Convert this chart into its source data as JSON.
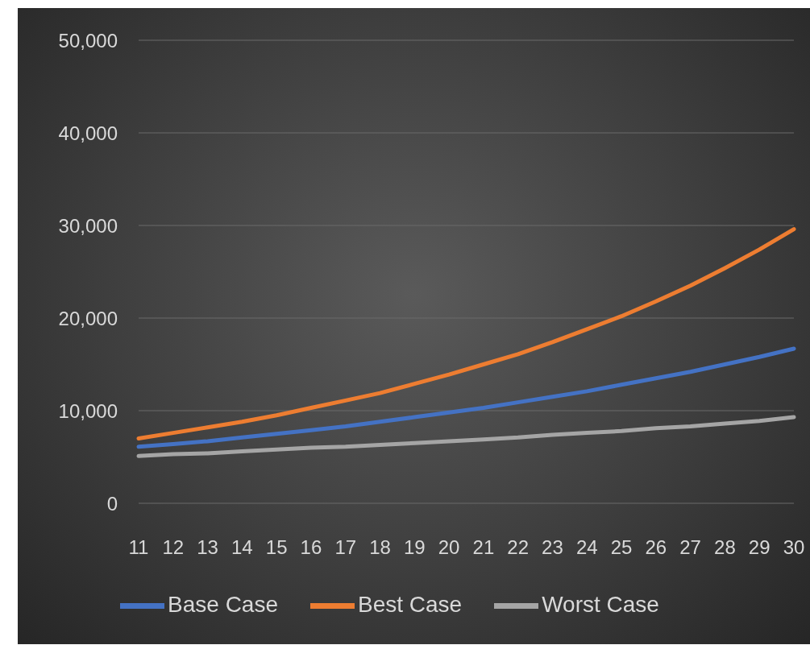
{
  "chart_data": {
    "type": "line",
    "categories": [
      "11",
      "12",
      "13",
      "14",
      "15",
      "16",
      "17",
      "18",
      "19",
      "20",
      "21",
      "22",
      "23",
      "24",
      "25",
      "26",
      "27",
      "28",
      "29",
      "30"
    ],
    "series": [
      {
        "name": "Base Case",
        "color": "#4472c4",
        "values": [
          6100,
          6400,
          6700,
          7100,
          7500,
          7900,
          8300,
          8800,
          9300,
          9800,
          10300,
          10900,
          11500,
          12100,
          12800,
          13500,
          14200,
          15000,
          15800,
          16700
        ]
      },
      {
        "name": "Best Case",
        "color": "#ed7d31",
        "values": [
          7000,
          7600,
          8200,
          8800,
          9500,
          10300,
          11100,
          11900,
          12900,
          13900,
          15000,
          16100,
          17400,
          18800,
          20200,
          21800,
          23500,
          25400,
          27400,
          29600
        ]
      },
      {
        "name": "Worst Case",
        "color": "#a5a5a5",
        "values": [
          5100,
          5300,
          5400,
          5600,
          5800,
          6000,
          6100,
          6300,
          6500,
          6700,
          6900,
          7100,
          7400,
          7600,
          7800,
          8100,
          8300,
          8600,
          8900,
          9300
        ]
      }
    ],
    "ylim": [
      0,
      50000
    ],
    "yticks": [
      0,
      {
        "value": 10000,
        "label": "10,000"
      },
      {
        "value": 20000,
        "label": "20,000"
      },
      {
        "value": 30000,
        "label": "30,000"
      },
      {
        "value": 40000,
        "label": "40,000"
      },
      {
        "value": 50000,
        "label": "50,000"
      }
    ],
    "grid": "y",
    "legend": "bottom"
  }
}
